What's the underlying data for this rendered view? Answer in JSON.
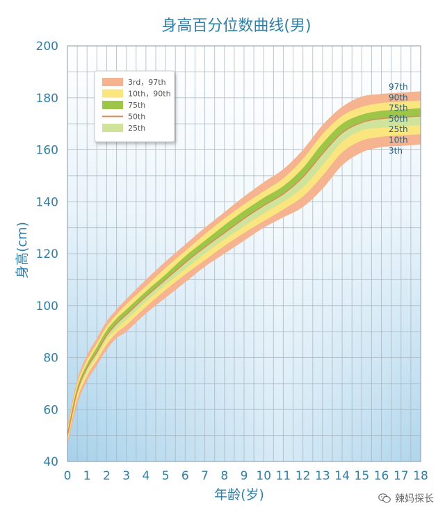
{
  "chart_data": {
    "type": "area",
    "title": "身高百分位数曲线(男)",
    "xlabel": "年龄(岁)",
    "ylabel": "身高(cm)",
    "xlim": [
      0,
      18
    ],
    "ylim": [
      40,
      200
    ],
    "xticks": [
      0,
      1,
      2,
      3,
      4,
      5,
      6,
      7,
      8,
      9,
      10,
      11,
      12,
      13,
      14,
      15,
      16,
      17,
      18
    ],
    "yticks": [
      40,
      60,
      80,
      100,
      120,
      140,
      160,
      180,
      200
    ],
    "ages": [
      0,
      0.5,
      1,
      1.5,
      2,
      2.5,
      3,
      4,
      5,
      6,
      7,
      8,
      9,
      10,
      11,
      12,
      13,
      14,
      15,
      16,
      17,
      18
    ],
    "series": [
      {
        "name": "3rd",
        "values": [
          46,
          62,
          71,
          77,
          83,
          87.5,
          90,
          97,
          103,
          109,
          115,
          120,
          125,
          130,
          134,
          138,
          145,
          154,
          159,
          161,
          161.5,
          162
        ]
      },
      {
        "name": "10th",
        "values": [
          47.5,
          64,
          73,
          79,
          85,
          89.5,
          92.5,
          99.5,
          106,
          112,
          117.5,
          123,
          128,
          132.5,
          137,
          142,
          150,
          159,
          163.5,
          165,
          165.5,
          166
        ]
      },
      {
        "name": "25th",
        "values": [
          48.5,
          65.5,
          74.5,
          80.5,
          87,
          91,
          94.5,
          101.5,
          108,
          114,
          120,
          125.5,
          130.5,
          135.5,
          140,
          145.5,
          154,
          163,
          167.5,
          168.5,
          169,
          169.5
        ]
      },
      {
        "name": "50th",
        "values": [
          50,
          67,
          76,
          82,
          88.5,
          93,
          96.5,
          103.5,
          110,
          116.5,
          122.5,
          128,
          133.5,
          138.5,
          143,
          149.5,
          158.5,
          166.5,
          170.5,
          172,
          172.5,
          173
        ]
      },
      {
        "name": "75th",
        "values": [
          51.5,
          68.5,
          77.5,
          84,
          90.5,
          95,
          98.5,
          105.5,
          112,
          119,
          125,
          131,
          136.5,
          141.5,
          146,
          153,
          162.5,
          170,
          173.5,
          175,
          175.5,
          176
        ]
      },
      {
        "name": "90th",
        "values": [
          52.5,
          70,
          79,
          85.5,
          92,
          96.5,
          100.5,
          107.5,
          114.5,
          121,
          127.5,
          133.5,
          139,
          144,
          149,
          156.5,
          166,
          173,
          176.5,
          178,
          178.5,
          179
        ]
      },
      {
        "name": "97th",
        "values": [
          54,
          71.5,
          81,
          87.5,
          94,
          98.5,
          102.5,
          110,
          117,
          123.5,
          130,
          136,
          142,
          147.5,
          152.5,
          160,
          169.5,
          176.5,
          180.5,
          181.5,
          182,
          182.5
        ]
      }
    ],
    "legend": {
      "position": "top-left",
      "items": [
        {
          "label": "3rd，97th",
          "color": "#f5b390",
          "kind": "box"
        },
        {
          "label": "10th，90th",
          "color": "#fbe57f",
          "kind": "box"
        },
        {
          "label": "75th",
          "color": "#9dc648",
          "kind": "box"
        },
        {
          "label": "50th",
          "color": "#d98a5a",
          "kind": "line"
        },
        {
          "label": "25th",
          "color": "#cfe39b",
          "kind": "box"
        }
      ]
    },
    "right_labels": [
      "97th",
      "90th",
      "75th",
      "50th",
      "25th",
      "10th",
      "3th"
    ],
    "grid": true
  },
  "colors": {
    "band_outer": "#f5b390",
    "band_mid": "#fbe57f",
    "band_75": "#9dc648",
    "band_25": "#cfe39b",
    "median": "#d98a5a",
    "grid": "#a8b4bf",
    "axis_text": "#2f7fa6",
    "bg_top": "#e7f2f9",
    "bg_bottom": "#9dcbe6"
  },
  "watermark": "辣妈探长",
  "watermark_icon": "wechat-logo-icon"
}
